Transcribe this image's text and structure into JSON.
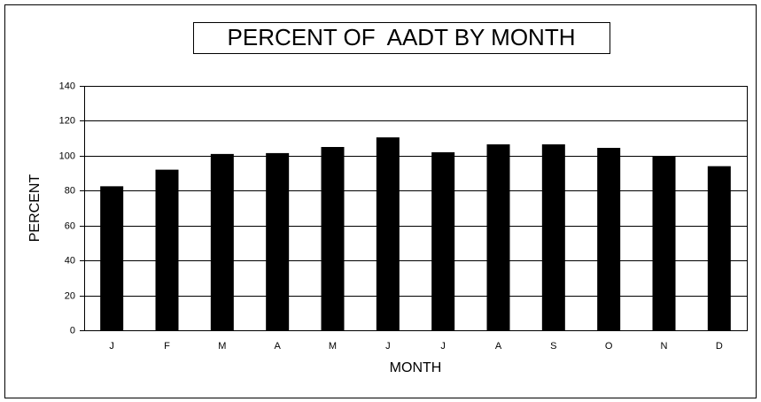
{
  "chart_data": {
    "type": "bar",
    "title": "PERCENT OF  AADT BY MONTH",
    "x_label": "MONTH",
    "y_label": "PERCENT",
    "categories": [
      "J",
      "F",
      "M",
      "A",
      "M",
      "J",
      "J",
      "A",
      "S",
      "O",
      "N",
      "D"
    ],
    "values": [
      82.5,
      92,
      101,
      101.5,
      105,
      110.5,
      102,
      106.5,
      106.5,
      104.5,
      99.5,
      94
    ],
    "color": "#000000",
    "ylim": [
      0,
      140
    ],
    "yticks": [
      0,
      20,
      40,
      60,
      80,
      100,
      120,
      140
    ],
    "grid": true
  }
}
